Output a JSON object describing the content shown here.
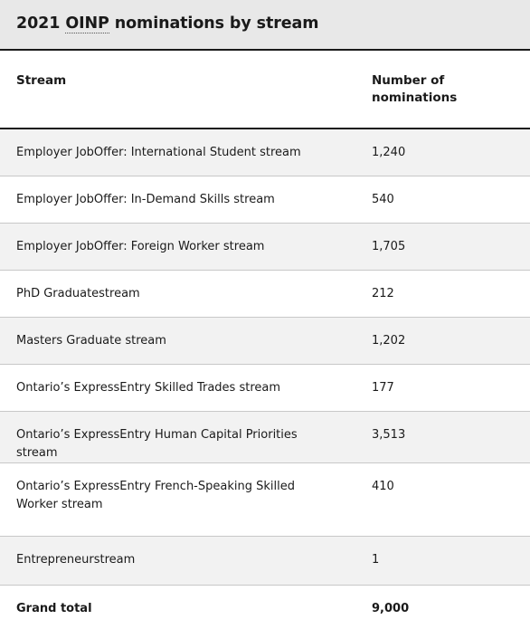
{
  "caption": {
    "prefix": "2021 ",
    "abbr": "OINP",
    "suffix": " nominations by stream"
  },
  "columns": {
    "stream": "Stream",
    "count_line1": "Number of",
    "count_line2": "nominations"
  },
  "rows": [
    {
      "stream": "Employer JobOffer: International Student stream",
      "count": "1,240"
    },
    {
      "stream": "Employer JobOffer: In-Demand Skills stream",
      "count": "540"
    },
    {
      "stream": "Employer JobOffer: Foreign Worker stream",
      "count": "1,705"
    },
    {
      "stream": "PhD Graduatestream",
      "count": "212"
    },
    {
      "stream": "Masters Graduate stream",
      "count": "1,202"
    },
    {
      "stream": "Ontario’s ExpressEntry Skilled Trades stream",
      "count": "177"
    },
    {
      "stream": "Ontario’s ExpressEntry Human Capital Priorities stream",
      "count": "3,513"
    },
    {
      "stream": "Ontario’s ExpressEntry French-Speaking Skilled Worker stream",
      "count": "410"
    },
    {
      "stream": "Entrepreneurstream",
      "count": "1"
    }
  ],
  "total": {
    "label": "Grand total",
    "count": "9,000"
  }
}
